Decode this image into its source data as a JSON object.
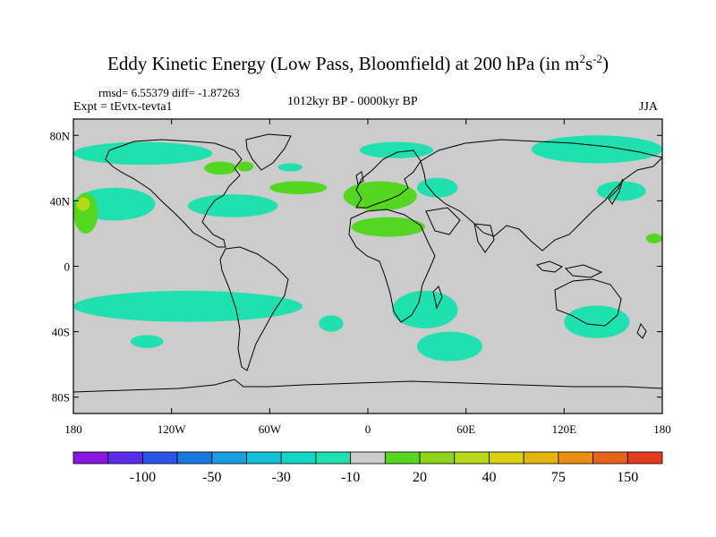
{
  "title": {
    "main": "Eddy Kinetic Energy (Low Pass, Bloomfield) at 200 hPa (in m",
    "exp1": "2",
    "mid": "s",
    "exp2": "-2",
    "close": ")"
  },
  "stats": "rmsd= 6.55379 diff= -1.87263",
  "experiment": "Expt = tEvtx-tevta1",
  "period": "1012kyr BP - 0000kyr BP",
  "season": "JJA",
  "chart_data": {
    "type": "heatmap",
    "projection": "cylindrical-equidistant",
    "lon_range": [
      -180,
      180
    ],
    "lat_range": [
      -90,
      90
    ],
    "x_tick_labels": [
      "180",
      "120W",
      "60W",
      "0",
      "60E",
      "120E",
      "180"
    ],
    "x_tick_values": [
      -180,
      -120,
      -60,
      0,
      60,
      120,
      180
    ],
    "y_tick_labels": [
      "80N",
      "40N",
      "0",
      "40S",
      "80S"
    ],
    "y_tick_values": [
      80,
      40,
      0,
      -40,
      -80
    ],
    "colorbar": {
      "labels": [
        "-100",
        "-50",
        "-30",
        "-10",
        "20",
        "40",
        "75",
        "150"
      ],
      "colors": [
        "#8a15e0",
        "#5a2ee8",
        "#2a55e8",
        "#1a78e0",
        "#1a9fe0",
        "#14c0d8",
        "#14d6c8",
        "#20e0b0",
        "#cccccc",
        "#55d620",
        "#8ed41c",
        "#b8d818",
        "#d8d010",
        "#e6b40e",
        "#e88e10",
        "#e6641a",
        "#e23c20"
      ],
      "background_value_color": "#cccccc"
    },
    "regions": [
      {
        "value": "-10",
        "color": "#20e0b0",
        "lon": [
          -180,
          -95
        ],
        "lat": [
          62,
          76
        ]
      },
      {
        "value": "-10",
        "color": "#20e0b0",
        "lon": [
          -110,
          -55
        ],
        "lat": [
          30,
          44
        ]
      },
      {
        "value": "-10",
        "color": "#20e0b0",
        "lon": [
          -5,
          40
        ],
        "lat": [
          66,
          76
        ]
      },
      {
        "value": "-10",
        "color": "#20e0b0",
        "lon": [
          30,
          55
        ],
        "lat": [
          42,
          54
        ]
      },
      {
        "value": "-10",
        "color": "#20e0b0",
        "lon": [
          100,
          180
        ],
        "lat": [
          63,
          80
        ]
      },
      {
        "value": "-10",
        "color": "#20e0b0",
        "lon": [
          140,
          170
        ],
        "lat": [
          40,
          52
        ]
      },
      {
        "value": "-10",
        "color": "#20e0b0",
        "lon": [
          -180,
          -130
        ],
        "lat": [
          28,
          48
        ]
      },
      {
        "value": "-10",
        "color": "#20e0b0",
        "lon": [
          -180,
          -40
        ],
        "lat": [
          -34,
          -15
        ]
      },
      {
        "value": "-10",
        "color": "#20e0b0",
        "lon": [
          15,
          55
        ],
        "lat": [
          -38,
          -15
        ]
      },
      {
        "value": "-10",
        "color": "#20e0b0",
        "lon": [
          30,
          70
        ],
        "lat": [
          -58,
          -40
        ]
      },
      {
        "value": "-10",
        "color": "#20e0b0",
        "lon": [
          120,
          160
        ],
        "lat": [
          -44,
          -24
        ]
      },
      {
        "value": "-10",
        "color": "#20e0b0",
        "lon": [
          -145,
          -125
        ],
        "lat": [
          -50,
          -42
        ]
      },
      {
        "value": "-10",
        "color": "#20e0b0",
        "lon": [
          -30,
          -15
        ],
        "lat": [
          -40,
          -30
        ]
      },
      {
        "value": "-10",
        "color": "#20e0b0",
        "lon": [
          -55,
          -40
        ],
        "lat": [
          58,
          63
        ]
      },
      {
        "value": "20",
        "color": "#55d620",
        "lon": [
          -60,
          -25
        ],
        "lat": [
          44,
          52
        ]
      },
      {
        "value": "20",
        "color": "#55d620",
        "lon": [
          -15,
          30
        ],
        "lat": [
          34,
          52
        ]
      },
      {
        "value": "20",
        "color": "#55d620",
        "lon": [
          -10,
          35
        ],
        "lat": [
          18,
          30
        ]
      },
      {
        "value": "20",
        "color": "#55d620",
        "lon": [
          -100,
          -80
        ],
        "lat": [
          56,
          64
        ]
      },
      {
        "value": "20",
        "color": "#55d620",
        "lon": [
          -180,
          -165
        ],
        "lat": [
          20,
          45
        ]
      },
      {
        "value": "20",
        "color": "#55d620",
        "lon": [
          -80,
          -70
        ],
        "lat": [
          58,
          64
        ]
      },
      {
        "value": "20",
        "color": "#55d620",
        "lon": [
          170,
          180
        ],
        "lat": [
          14,
          20
        ]
      },
      {
        "value": "40",
        "color": "#b8d818",
        "lon": [
          -178,
          -170
        ],
        "lat": [
          34,
          42
        ]
      }
    ]
  }
}
